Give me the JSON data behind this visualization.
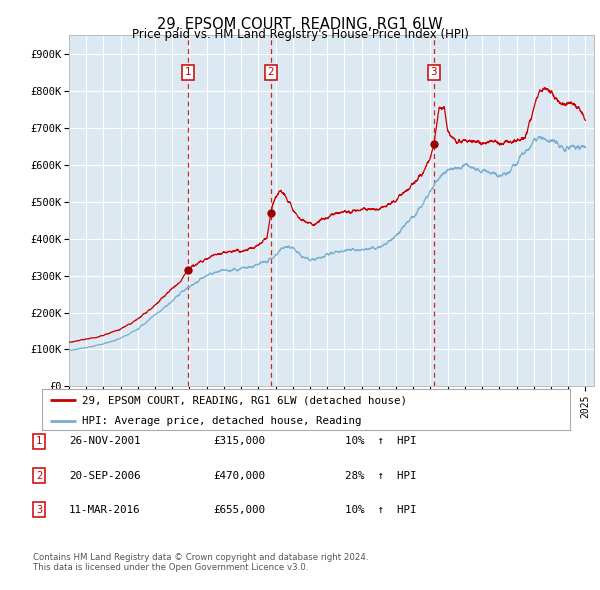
{
  "title": "29, EPSOM COURT, READING, RG1 6LW",
  "subtitle": "Price paid vs. HM Land Registry's House Price Index (HPI)",
  "footer_line1": "Contains HM Land Registry data © Crown copyright and database right 2024.",
  "footer_line2": "This data is licensed under the Open Government Licence v3.0.",
  "legend_label_red": "29, EPSOM COURT, READING, RG1 6LW (detached house)",
  "legend_label_blue": "HPI: Average price, detached house, Reading",
  "transactions": [
    {
      "num": 1,
      "date": "26-NOV-2001",
      "price": 315000,
      "hpi_pct": "10%",
      "hpi_dir": "↑"
    },
    {
      "num": 2,
      "date": "20-SEP-2006",
      "price": 470000,
      "hpi_pct": "28%",
      "hpi_dir": "↑"
    },
    {
      "num": 3,
      "date": "11-MAR-2016",
      "price": 655000,
      "hpi_pct": "10%",
      "hpi_dir": "↑"
    }
  ],
  "transaction_dates_decimal": [
    2001.9,
    2006.72,
    2016.19
  ],
  "transaction_prices": [
    315000,
    470000,
    655000
  ],
  "red_color": "#cc0000",
  "blue_color": "#7aadcf",
  "dashed_color": "#cc0000",
  "background_plot": "#dce9f2",
  "background_fig": "#ffffff",
  "grid_color": "#ffffff",
  "ylim": [
    0,
    950000
  ],
  "xlim_start": 1995.0,
  "xlim_end": 2025.5,
  "yticks": [
    0,
    100000,
    200000,
    300000,
    400000,
    500000,
    600000,
    700000,
    800000,
    900000
  ],
  "ytick_labels": [
    "£0",
    "£100K",
    "£200K",
    "£300K",
    "£400K",
    "£500K",
    "£600K",
    "£700K",
    "£800K",
    "£900K"
  ],
  "xtick_years": [
    1995,
    1996,
    1997,
    1998,
    1999,
    2000,
    2001,
    2002,
    2003,
    2004,
    2005,
    2006,
    2007,
    2008,
    2009,
    2010,
    2011,
    2012,
    2013,
    2014,
    2015,
    2016,
    2017,
    2018,
    2019,
    2020,
    2021,
    2022,
    2023,
    2024,
    2025
  ],
  "hpi_anchors": [
    [
      1995.0,
      98000
    ],
    [
      1996.0,
      105000
    ],
    [
      1997.0,
      115000
    ],
    [
      1998.0,
      130000
    ],
    [
      1999.0,
      155000
    ],
    [
      2000.0,
      195000
    ],
    [
      2001.0,
      230000
    ],
    [
      2001.5,
      255000
    ],
    [
      2002.0,
      270000
    ],
    [
      2002.5,
      285000
    ],
    [
      2003.0,
      300000
    ],
    [
      2003.5,
      308000
    ],
    [
      2004.0,
      312000
    ],
    [
      2004.5,
      315000
    ],
    [
      2005.0,
      318000
    ],
    [
      2005.5,
      322000
    ],
    [
      2006.0,
      330000
    ],
    [
      2006.5,
      338000
    ],
    [
      2007.0,
      355000
    ],
    [
      2007.5,
      378000
    ],
    [
      2008.0,
      375000
    ],
    [
      2008.5,
      355000
    ],
    [
      2009.0,
      340000
    ],
    [
      2009.5,
      345000
    ],
    [
      2010.0,
      355000
    ],
    [
      2010.5,
      365000
    ],
    [
      2011.0,
      368000
    ],
    [
      2011.5,
      368000
    ],
    [
      2012.0,
      368000
    ],
    [
      2012.5,
      372000
    ],
    [
      2013.0,
      378000
    ],
    [
      2013.5,
      388000
    ],
    [
      2014.0,
      408000
    ],
    [
      2014.5,
      435000
    ],
    [
      2015.0,
      460000
    ],
    [
      2015.5,
      490000
    ],
    [
      2016.0,
      530000
    ],
    [
      2016.5,
      565000
    ],
    [
      2017.0,
      585000
    ],
    [
      2017.5,
      592000
    ],
    [
      2018.0,
      595000
    ],
    [
      2018.5,
      592000
    ],
    [
      2019.0,
      585000
    ],
    [
      2019.5,
      578000
    ],
    [
      2020.0,
      568000
    ],
    [
      2020.5,
      578000
    ],
    [
      2021.0,
      605000
    ],
    [
      2021.5,
      635000
    ],
    [
      2022.0,
      660000
    ],
    [
      2022.5,
      672000
    ],
    [
      2023.0,
      668000
    ],
    [
      2023.5,
      652000
    ],
    [
      2024.0,
      645000
    ],
    [
      2024.5,
      648000
    ],
    [
      2025.0,
      648000
    ]
  ],
  "red_anchors": [
    [
      1995.0,
      120000
    ],
    [
      1996.0,
      128000
    ],
    [
      1997.0,
      138000
    ],
    [
      1998.0,
      155000
    ],
    [
      1999.0,
      182000
    ],
    [
      2000.0,
      220000
    ],
    [
      2001.0,
      265000
    ],
    [
      2001.5,
      285000
    ],
    [
      2001.9,
      315000
    ],
    [
      2002.0,
      320000
    ],
    [
      2002.5,
      335000
    ],
    [
      2003.0,
      348000
    ],
    [
      2003.5,
      358000
    ],
    [
      2004.0,
      362000
    ],
    [
      2004.5,
      365000
    ],
    [
      2005.0,
      368000
    ],
    [
      2005.5,
      372000
    ],
    [
      2006.0,
      382000
    ],
    [
      2006.5,
      402000
    ],
    [
      2006.72,
      470000
    ],
    [
      2007.0,
      520000
    ],
    [
      2007.3,
      530000
    ],
    [
      2007.8,
      500000
    ],
    [
      2008.3,
      458000
    ],
    [
      2008.8,
      445000
    ],
    [
      2009.2,
      440000
    ],
    [
      2009.6,
      448000
    ],
    [
      2010.0,
      458000
    ],
    [
      2010.5,
      468000
    ],
    [
      2011.0,
      472000
    ],
    [
      2011.5,
      475000
    ],
    [
      2012.0,
      478000
    ],
    [
      2012.5,
      480000
    ],
    [
      2013.0,
      483000
    ],
    [
      2013.5,
      490000
    ],
    [
      2014.0,
      505000
    ],
    [
      2014.5,
      525000
    ],
    [
      2015.0,
      548000
    ],
    [
      2015.5,
      572000
    ],
    [
      2016.0,
      620000
    ],
    [
      2016.19,
      655000
    ],
    [
      2016.5,
      750000
    ],
    [
      2016.8,
      760000
    ],
    [
      2017.0,
      690000
    ],
    [
      2017.3,
      668000
    ],
    [
      2017.8,
      660000
    ],
    [
      2018.0,
      665000
    ],
    [
      2018.5,
      668000
    ],
    [
      2019.0,
      660000
    ],
    [
      2019.5,
      665000
    ],
    [
      2020.0,
      658000
    ],
    [
      2020.5,
      660000
    ],
    [
      2021.0,
      665000
    ],
    [
      2021.5,
      672000
    ],
    [
      2022.0,
      755000
    ],
    [
      2022.3,
      800000
    ],
    [
      2022.6,
      810000
    ],
    [
      2022.9,
      800000
    ],
    [
      2023.2,
      785000
    ],
    [
      2023.5,
      775000
    ],
    [
      2023.8,
      768000
    ],
    [
      2024.0,
      772000
    ],
    [
      2024.3,
      765000
    ],
    [
      2024.6,
      750000
    ],
    [
      2025.0,
      720000
    ]
  ]
}
